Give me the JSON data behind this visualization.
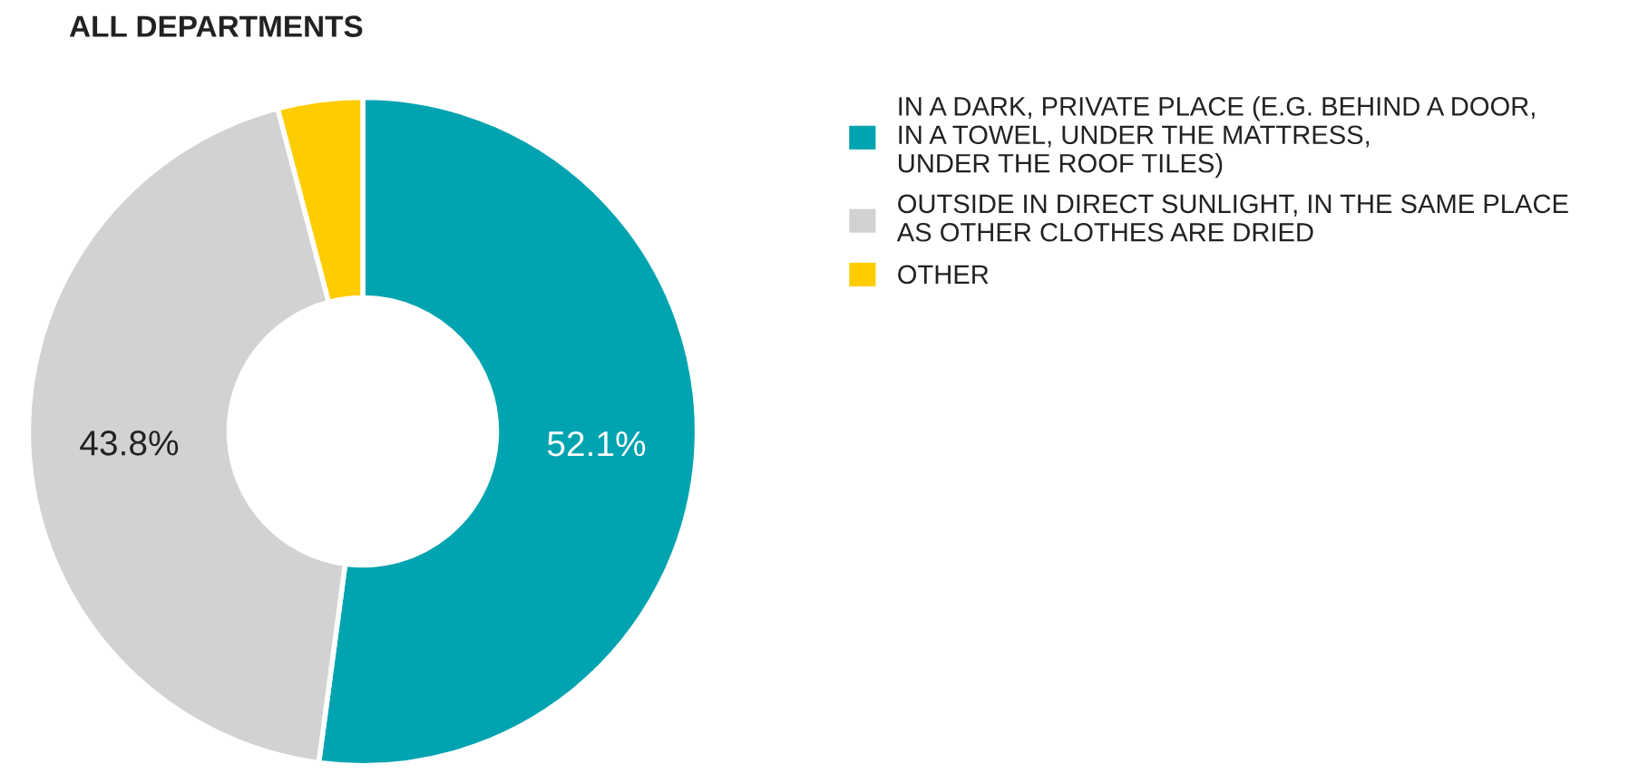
{
  "chart_data": {
    "type": "donut",
    "title": "ALL DEPARTMENTS",
    "categories": [
      "IN A DARK, PRIVATE PLACE (E.G. BEHIND A DOOR,\nIN A TOWEL, UNDER THE MATTRESS,\nUNDER THE ROOF TILES)",
      "OUTSIDE IN DIRECT SUNLIGHT, IN THE SAME PLACE\nAS OTHER CLOTHES ARE DRIED",
      "OTHER"
    ],
    "values": [
      52.1,
      43.8,
      4.1
    ],
    "value_labels": [
      "52.1%",
      "43.8%",
      null
    ],
    "colors": [
      "#00a3b0",
      "#d1d2d4",
      "#ffcc00"
    ],
    "legend": "right"
  }
}
